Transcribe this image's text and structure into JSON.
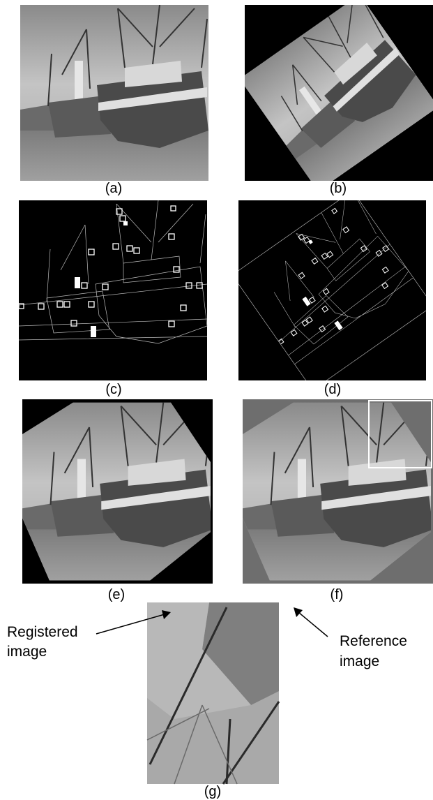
{
  "panels": [
    {
      "label": "(a)"
    },
    {
      "label": "(b)"
    },
    {
      "label": "(c)"
    },
    {
      "label": "(d)"
    },
    {
      "label": "(e)"
    },
    {
      "label": "(f)"
    },
    {
      "label": "(g)"
    }
  ],
  "annotations": [
    {
      "lines": [
        "Registered",
        "image"
      ]
    },
    {
      "lines": [
        "Reference",
        "image"
      ]
    }
  ]
}
